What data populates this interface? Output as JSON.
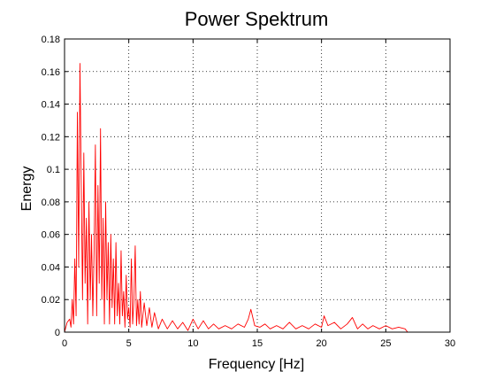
{
  "chart_data": {
    "type": "line",
    "title": "Power Spektrum",
    "xlabel": "Frequency [Hz]",
    "ylabel": "Energy",
    "xlim": [
      0,
      30
    ],
    "ylim": [
      0,
      0.18
    ],
    "x_ticks": [
      0,
      5,
      10,
      15,
      20,
      25,
      30
    ],
    "x_tick_labels": [
      "0",
      "5",
      "10",
      "15",
      "20",
      "25",
      "30"
    ],
    "y_ticks": [
      0,
      0.02,
      0.04,
      0.06,
      0.08,
      0.1,
      0.12,
      0.14,
      0.16,
      0.18
    ],
    "y_tick_labels": [
      "0",
      "0.02",
      "0.04",
      "0.06",
      "0.08",
      "0.1",
      "0.12",
      "0.14",
      "0.16",
      "0.18"
    ],
    "grid": true,
    "line_color": "#ff0000",
    "series": [
      {
        "x": [
          0.0,
          0.2,
          0.4,
          0.5,
          0.6,
          0.7,
          0.8,
          0.9,
          1.0,
          1.1,
          1.2,
          1.3,
          1.4,
          1.5,
          1.6,
          1.7,
          1.8,
          1.9,
          2.0,
          2.1,
          2.2,
          2.3,
          2.4,
          2.5,
          2.6,
          2.7,
          2.8,
          2.9,
          3.0,
          3.1,
          3.2,
          3.3,
          3.4,
          3.5,
          3.6,
          3.7,
          3.8,
          3.9,
          4.0,
          4.1,
          4.2,
          4.3,
          4.4,
          4.5,
          4.6,
          4.7,
          4.8,
          4.9,
          5.0,
          5.1,
          5.2,
          5.3,
          5.4,
          5.5,
          5.6,
          5.7,
          5.8,
          5.9,
          6.0,
          6.2,
          6.4,
          6.6,
          6.8,
          7.0,
          7.3,
          7.6,
          8.0,
          8.4,
          8.8,
          9.2,
          9.6,
          10.0,
          10.4,
          10.8,
          11.2,
          11.6,
          12.0,
          12.5,
          13.0,
          13.5,
          14.0,
          14.3,
          14.5,
          14.8,
          15.2,
          15.6,
          16.0,
          16.5,
          17.0,
          17.5,
          18.0,
          18.5,
          19.0,
          19.5,
          20.0,
          20.2,
          20.5,
          21.0,
          21.5,
          22.0,
          22.4,
          22.8,
          23.2,
          23.6,
          24.0,
          24.5,
          25.0,
          25.5,
          26.0,
          26.5,
          26.7
        ],
        "y": [
          0.0,
          0.006,
          0.008,
          0.003,
          0.02,
          0.005,
          0.045,
          0.01,
          0.135,
          0.04,
          0.165,
          0.09,
          0.02,
          0.11,
          0.03,
          0.07,
          0.005,
          0.08,
          0.02,
          0.06,
          0.01,
          0.05,
          0.115,
          0.01,
          0.09,
          0.03,
          0.125,
          0.02,
          0.07,
          0.005,
          0.08,
          0.02,
          0.055,
          0.005,
          0.06,
          0.015,
          0.045,
          0.005,
          0.055,
          0.01,
          0.03,
          0.005,
          0.05,
          0.01,
          0.025,
          0.003,
          0.035,
          0.008,
          0.015,
          0.003,
          0.045,
          0.005,
          0.02,
          0.053,
          0.004,
          0.02,
          0.005,
          0.025,
          0.003,
          0.018,
          0.004,
          0.015,
          0.003,
          0.012,
          0.002,
          0.008,
          0.002,
          0.007,
          0.002,
          0.006,
          0.001,
          0.008,
          0.002,
          0.007,
          0.002,
          0.005,
          0.002,
          0.004,
          0.002,
          0.005,
          0.003,
          0.008,
          0.014,
          0.004,
          0.003,
          0.005,
          0.002,
          0.004,
          0.002,
          0.006,
          0.002,
          0.004,
          0.002,
          0.005,
          0.003,
          0.01,
          0.004,
          0.006,
          0.002,
          0.005,
          0.009,
          0.002,
          0.005,
          0.002,
          0.004,
          0.002,
          0.004,
          0.002,
          0.003,
          0.002,
          0.0
        ]
      }
    ]
  }
}
